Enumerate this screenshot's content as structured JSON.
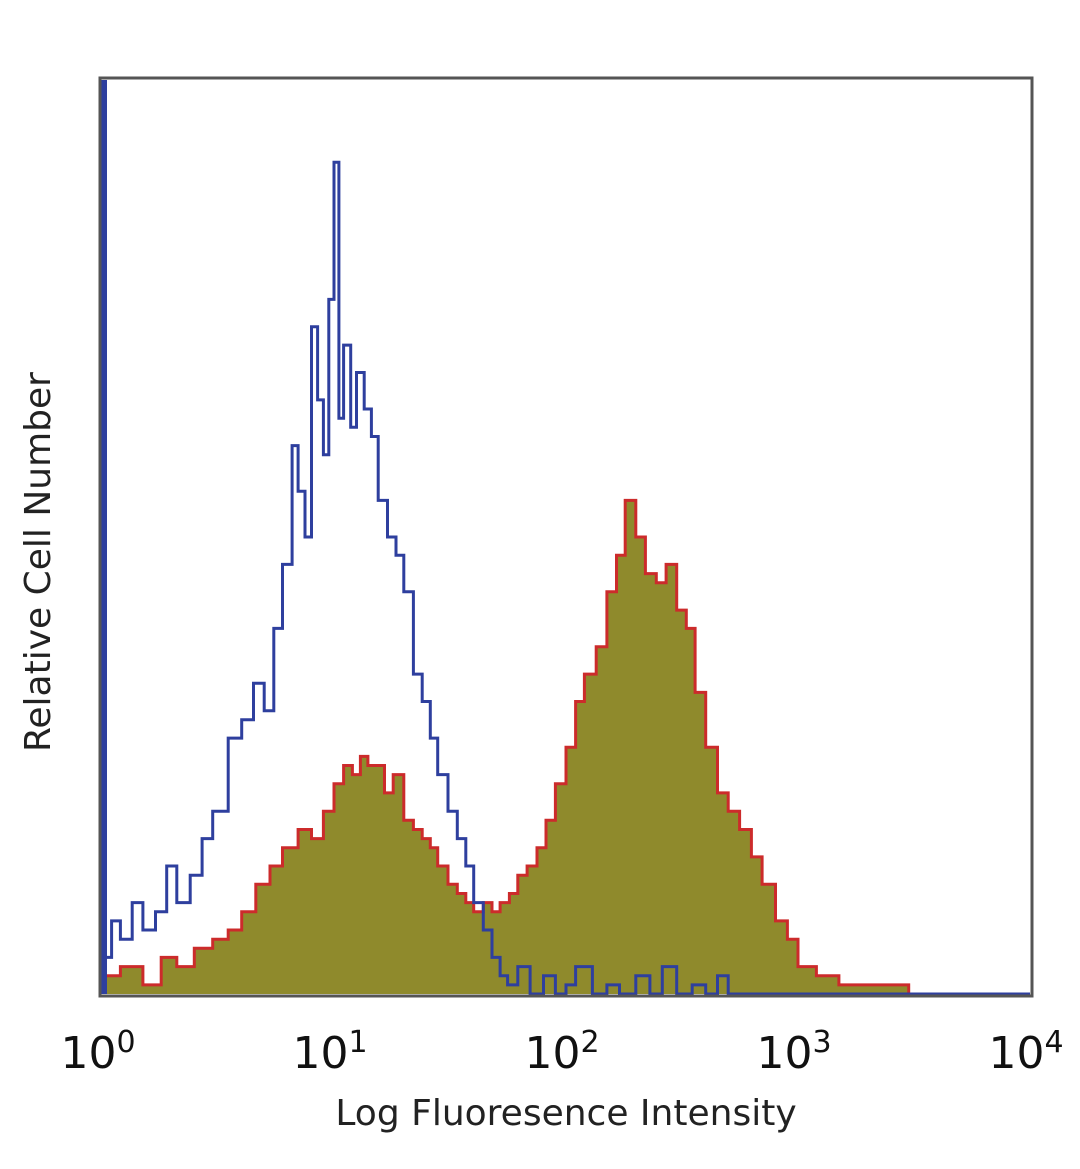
{
  "chart_data": {
    "type": "area",
    "x_scale": "log",
    "xlim": [
      1,
      10000
    ],
    "ylim": [
      0,
      100
    ],
    "grid": false,
    "legend": "none",
    "xlabel": "Log Fluoresence Intensity",
    "ylabel": "Relative Cell Number",
    "x_ticks": [
      {
        "base": "10",
        "exp": "0",
        "value": 1
      },
      {
        "base": "10",
        "exp": "1",
        "value": 10
      },
      {
        "base": "10",
        "exp": "2",
        "value": 100
      },
      {
        "base": "10",
        "exp": "3",
        "value": 1000
      },
      {
        "base": "10",
        "exp": "4",
        "value": 10000
      }
    ],
    "series": [
      {
        "color": "#2e3f9e",
        "fill": "none",
        "x": [
          1.0,
          1.1,
          1.2,
          1.35,
          1.5,
          1.7,
          1.9,
          2.1,
          2.4,
          2.7,
          3.0,
          3.5,
          4.0,
          4.5,
          5.0,
          5.5,
          6.0,
          6.6,
          7.0,
          7.5,
          8.0,
          8.5,
          9.0,
          9.5,
          10.0,
          10.5,
          11.0,
          11.8,
          12.5,
          13.5,
          14.5,
          15.5,
          17.0,
          18.5,
          20.0,
          22.0,
          24.0,
          26.0,
          28.0,
          31.0,
          34.0,
          37.0,
          40.0,
          44.0,
          48.0,
          52.0,
          56.0,
          62.0,
          70.0,
          80.0,
          90.0,
          100.0,
          110.0,
          130.0,
          150.0,
          170.0,
          200.0,
          230.0,
          260.0,
          300.0,
          350.0,
          400.0,
          450.0,
          500.0,
          600.0,
          800.0,
          1000.0,
          2000.0,
          10000.0
        ],
        "values": [
          4,
          8,
          6,
          10,
          7,
          9,
          14,
          10,
          13,
          17,
          20,
          28,
          30,
          34,
          31,
          40,
          47,
          60,
          55,
          50,
          73,
          65,
          59,
          76,
          91,
          63,
          71,
          62,
          68,
          64,
          61,
          54,
          50,
          48,
          44,
          35,
          32,
          28,
          24,
          20,
          17,
          14,
          10,
          7,
          4,
          2,
          1,
          3,
          0,
          2,
          0,
          1,
          3,
          0,
          1,
          0,
          2,
          0,
          3,
          0,
          1,
          0,
          2,
          0,
          0,
          0,
          0,
          0,
          0
        ]
      },
      {
        "color": "#cc2b2b",
        "fill": "#8f8a2c",
        "x": [
          1.0,
          1.2,
          1.5,
          1.8,
          2.1,
          2.5,
          3.0,
          3.5,
          4.0,
          4.6,
          5.3,
          6.0,
          7.0,
          8.0,
          9.0,
          10.0,
          11.0,
          12.0,
          13.0,
          14.0,
          15.0,
          16.5,
          18.0,
          20.0,
          22.0,
          24.0,
          26.0,
          28.0,
          31.0,
          34.0,
          37.0,
          40.0,
          44.0,
          48.0,
          52.0,
          57.0,
          62.0,
          68.0,
          75.0,
          82.0,
          90.0,
          100.0,
          110.0,
          120.0,
          135.0,
          150.0,
          165.0,
          180.0,
          200.0,
          220.0,
          245.0,
          270.0,
          300.0,
          330.0,
          360.0,
          400.0,
          450.0,
          500.0,
          560.0,
          630.0,
          700.0,
          800.0,
          900.0,
          1000.0,
          1200.0,
          1500.0,
          2000.0,
          2600.0,
          3000.0,
          10000.0
        ],
        "values": [
          2,
          3,
          1,
          4,
          3,
          5,
          6,
          7,
          9,
          12,
          14,
          16,
          18,
          17,
          20,
          23,
          25,
          24,
          26,
          25,
          25,
          22,
          24,
          19,
          18,
          17,
          16,
          14,
          12,
          11,
          10,
          9,
          10,
          9,
          10,
          11,
          13,
          14,
          16,
          19,
          23,
          27,
          32,
          35,
          38,
          44,
          48,
          54,
          50,
          46,
          45,
          47,
          42,
          40,
          33,
          27,
          22,
          20,
          18,
          15,
          12,
          8,
          6,
          3,
          2,
          1,
          1,
          1,
          0,
          0
        ]
      }
    ]
  }
}
